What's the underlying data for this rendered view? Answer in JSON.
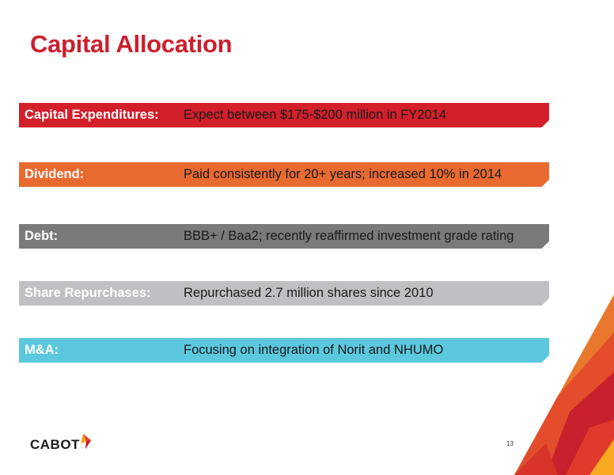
{
  "slide": {
    "title": "Capital Allocation",
    "page_number": "13"
  },
  "items": [
    {
      "label": "Capital Expenditures:",
      "text": "Expect between $175-$200 million in FY2014",
      "color": "#d21f2a"
    },
    {
      "label": "Dividend:",
      "text": "Paid consistently for 20+ years; increased 10% in 2014",
      "color": "#e86a31"
    },
    {
      "label": "Debt:",
      "text": "BBB+ / Baa2; recently reaffirmed investment grade rating",
      "color": "#7a7a7a"
    },
    {
      "label": "Share Repurchases:",
      "text": "Repurchased 2.7 million shares since 2010",
      "color": "#bfc0c3"
    },
    {
      "label": "M&A:",
      "text": "Focusing on integration of Norit and NHUMO",
      "color": "#5bc8dd"
    }
  ],
  "logo": {
    "text": "CABOT",
    "icon": "cabot-flame-icon"
  },
  "colors": {
    "title": "#cc1f2d",
    "accent_red": "#d21f2a",
    "accent_orange": "#e86a31",
    "accent_yellow": "#f5a623"
  }
}
